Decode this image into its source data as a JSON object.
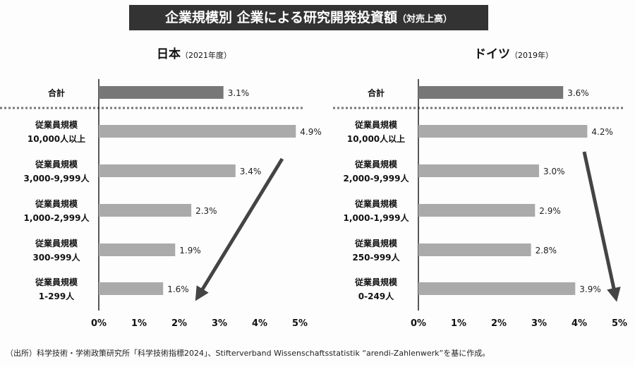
{
  "title": "企業規模別 企業による研究開発投資額",
  "title_note": "（対売上高）",
  "footer": "（出所）科学技術・学術政策研究所「科学技術指標2024」、Stifterverband Wissenschaftsstatistik “arendi-Zahlenwerk”を基に作成。",
  "colors": {
    "total": "#777777",
    "bar": "#aaaaaa",
    "arrow": "#444444"
  },
  "chart_data": [
    {
      "type": "bar",
      "orientation": "horizontal",
      "title": "日本",
      "subtitle": "（2021年度）",
      "categories": [
        [
          "合計"
        ],
        [
          "従業員規模",
          "10,000人以上"
        ],
        [
          "従業員規模",
          "3,000-9,999人"
        ],
        [
          "従業員規模",
          "1,000-2,999人"
        ],
        [
          "従業員規模",
          "300-999人"
        ],
        [
          "従業員規模",
          "1-299人"
        ]
      ],
      "values": [
        3.1,
        4.9,
        3.4,
        2.3,
        1.9,
        1.6
      ],
      "labels": [
        "3.1%",
        "4.9%",
        "3.4%",
        "2.3%",
        "1.9%",
        "1.6%"
      ],
      "xlim": [
        0,
        5
      ],
      "xticks": [
        "0%",
        "1%",
        "2%",
        "3%",
        "4%",
        "5%"
      ]
    },
    {
      "type": "bar",
      "orientation": "horizontal",
      "title": "ドイツ",
      "subtitle": "（2019年）",
      "categories": [
        [
          "合計"
        ],
        [
          "従業員規模",
          "10,000人以上"
        ],
        [
          "従業員規模",
          "2,000-9,999人"
        ],
        [
          "従業員規模",
          "1,000-1,999人"
        ],
        [
          "従業員規模",
          "250-999人"
        ],
        [
          "従業員規模",
          "0-249人"
        ]
      ],
      "values": [
        3.6,
        4.2,
        3.0,
        2.9,
        2.8,
        3.9
      ],
      "labels": [
        "3.6%",
        "4.2%",
        "3.0%",
        "2.9%",
        "2.8%",
        "3.9%"
      ],
      "xlim": [
        0,
        5
      ],
      "xticks": [
        "0%",
        "1%",
        "2%",
        "3%",
        "4%",
        "5%"
      ]
    }
  ]
}
